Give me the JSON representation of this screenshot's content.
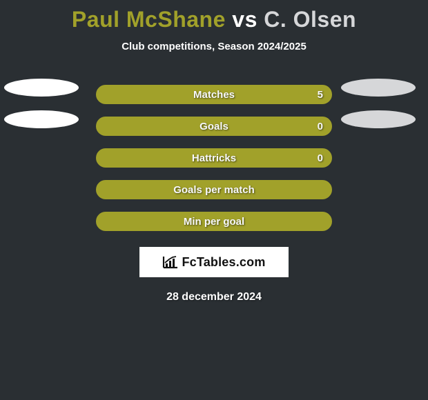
{
  "title": {
    "player1": "Paul McShane",
    "vs": " vs ",
    "player2": "C. Olsen",
    "player1_color": "#a1a12a",
    "vs_color": "#ffffff",
    "player2_color": "#d6d7d9"
  },
  "subtitle": "Club competitions, Season 2024/2025",
  "colors": {
    "player1": "#ffffff",
    "player2": "#d6d7d9",
    "bar_fill": "#a1a12a",
    "bar_border": "#a1a12a",
    "background": "#2a2f33"
  },
  "stats": [
    {
      "label": "Matches",
      "left_has": true,
      "right_has": true,
      "value": "5",
      "show_value": true
    },
    {
      "label": "Goals",
      "left_has": true,
      "right_has": true,
      "value": "0",
      "show_value": true
    },
    {
      "label": "Hattricks",
      "left_has": false,
      "right_has": false,
      "value": "0",
      "show_value": true
    },
    {
      "label": "Goals per match",
      "left_has": false,
      "right_has": false,
      "value": "",
      "show_value": false
    },
    {
      "label": "Min per goal",
      "left_has": false,
      "right_has": false,
      "value": "",
      "show_value": false
    }
  ],
  "logo": "FcTables.com",
  "date": "28 december 2024"
}
